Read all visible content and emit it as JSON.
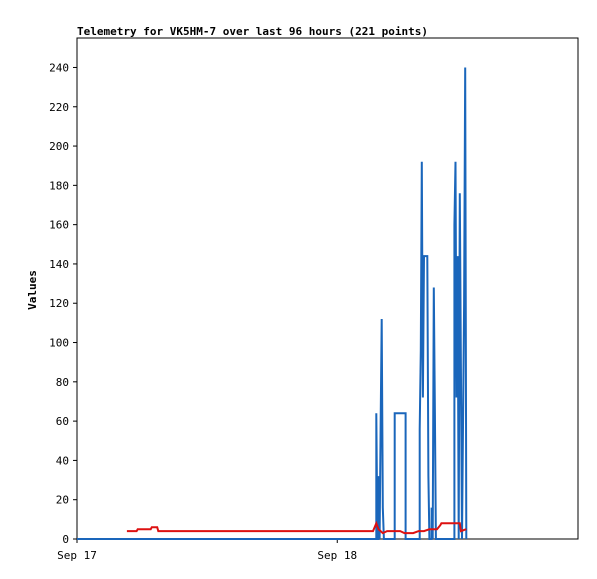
{
  "chart_data": {
    "type": "line",
    "title": "Telemetry for VK5HM-7 over last 96 hours (221 points)",
    "xlabel": "",
    "ylabel": "Values",
    "x_ticks": [
      "Sep 17",
      "Sep 18"
    ],
    "x_range_hours": [
      0,
      46.2
    ],
    "x_tick_hours": [
      0,
      24
    ],
    "ylim": [
      0,
      255
    ],
    "y_ticks": [
      0,
      20,
      40,
      60,
      80,
      100,
      120,
      140,
      160,
      180,
      200,
      220,
      240
    ],
    "grid": false,
    "legend": "none",
    "series": [
      {
        "color": "#1a66bb",
        "points": [
          [
            0,
            0
          ],
          [
            27.6,
            0
          ],
          [
            27.6,
            64
          ],
          [
            27.7,
            0
          ],
          [
            27.8,
            0
          ],
          [
            27.8,
            32
          ],
          [
            27.9,
            0
          ],
          [
            28.0,
            56
          ],
          [
            28.1,
            112
          ],
          [
            28.2,
            16
          ],
          [
            28.3,
            0
          ],
          [
            29.3,
            0
          ],
          [
            29.3,
            64
          ],
          [
            30.3,
            64
          ],
          [
            30.3,
            0
          ],
          [
            31.6,
            0
          ],
          [
            31.6,
            56
          ],
          [
            31.7,
            96
          ],
          [
            31.8,
            192
          ],
          [
            31.9,
            72
          ],
          [
            32.0,
            144
          ],
          [
            32.3,
            144
          ],
          [
            32.4,
            32
          ],
          [
            32.5,
            0
          ],
          [
            32.7,
            0
          ],
          [
            32.7,
            16
          ],
          [
            32.8,
            0
          ],
          [
            32.9,
            128
          ],
          [
            33.0,
            64
          ],
          [
            33.1,
            0
          ],
          [
            34.8,
            0
          ],
          [
            34.8,
            160
          ],
          [
            34.9,
            192
          ],
          [
            35.0,
            72
          ],
          [
            35.1,
            144
          ],
          [
            35.2,
            0
          ],
          [
            35.3,
            176
          ],
          [
            35.4,
            88
          ],
          [
            35.5,
            0
          ],
          [
            35.7,
            120
          ],
          [
            35.8,
            240
          ],
          [
            35.9,
            0
          ]
        ]
      },
      {
        "color": "#dd1111",
        "points": [
          [
            4.6,
            4
          ],
          [
            5.5,
            4
          ],
          [
            5.6,
            5
          ],
          [
            6.8,
            5
          ],
          [
            6.9,
            6
          ],
          [
            7.4,
            6
          ],
          [
            7.5,
            4
          ],
          [
            27.3,
            4
          ],
          [
            27.6,
            8
          ],
          [
            27.8,
            5
          ],
          [
            28.2,
            3
          ],
          [
            28.6,
            4
          ],
          [
            29.8,
            4
          ],
          [
            30.2,
            3
          ],
          [
            31.0,
            3
          ],
          [
            31.5,
            4
          ],
          [
            32.0,
            4
          ],
          [
            32.5,
            5
          ],
          [
            33.2,
            5
          ],
          [
            33.5,
            7
          ],
          [
            33.6,
            8
          ],
          [
            35.3,
            8
          ],
          [
            35.4,
            4
          ],
          [
            35.9,
            5
          ]
        ]
      }
    ]
  }
}
